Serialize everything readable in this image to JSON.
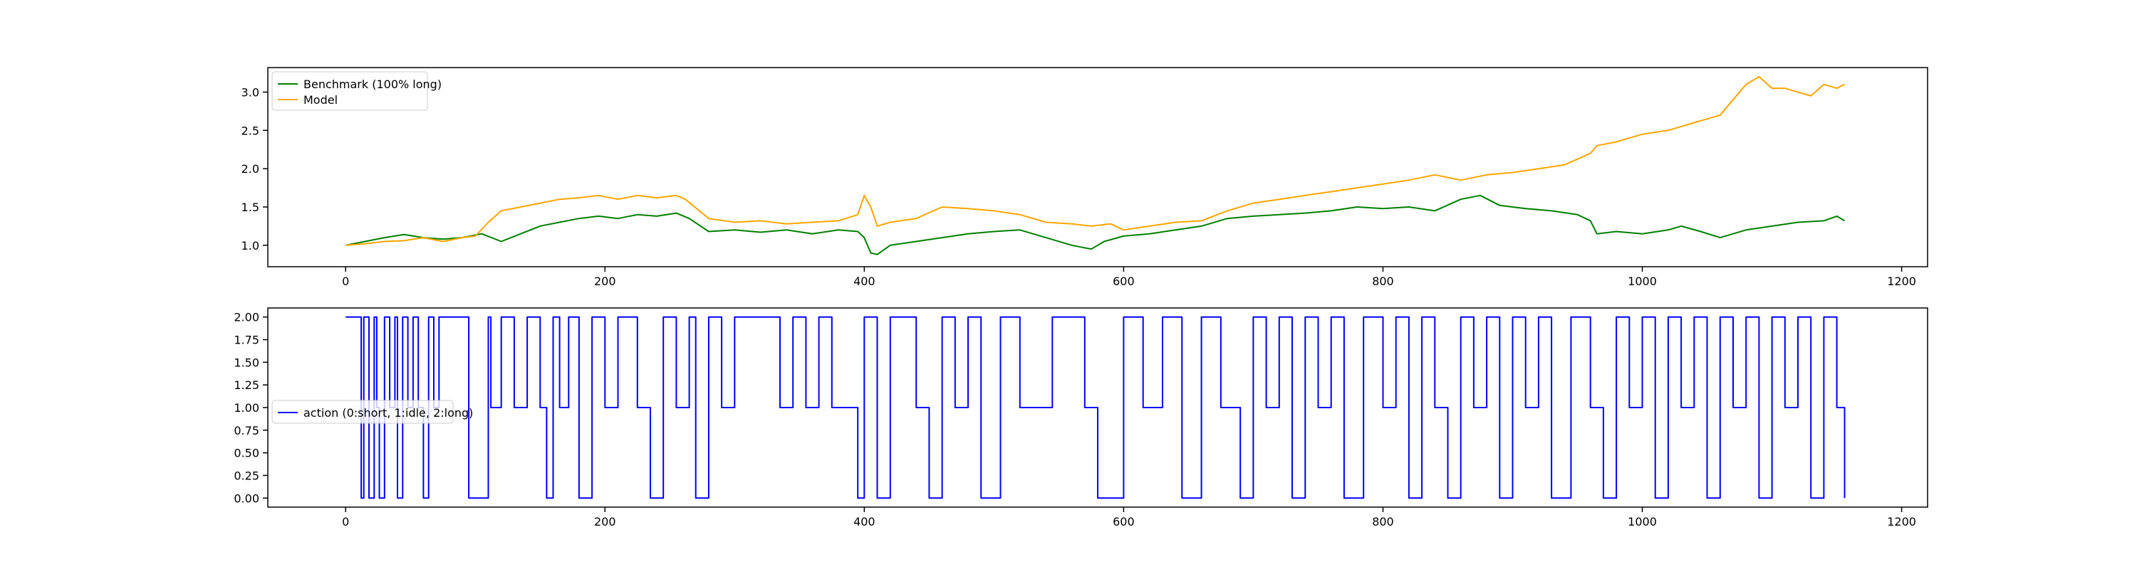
{
  "chart_data": [
    {
      "type": "line",
      "title": "",
      "xlabel": "",
      "ylabel": "",
      "xlim": [
        -60,
        1220
      ],
      "ylim": [
        0.72,
        3.32
      ],
      "xticks": [
        0,
        200,
        400,
        600,
        800,
        1000,
        1200
      ],
      "yticks": [
        1.0,
        1.5,
        2.0,
        2.5,
        3.0
      ],
      "ytick_labels": [
        "1.0",
        "1.5",
        "2.0",
        "2.5",
        "3.0"
      ],
      "grid": false,
      "legend": "upper-left",
      "series": [
        {
          "name": "Benchmark (100% long)",
          "color": "#008000",
          "x": [
            0,
            15,
            30,
            45,
            60,
            75,
            90,
            105,
            120,
            135,
            150,
            165,
            180,
            195,
            210,
            225,
            240,
            255,
            265,
            280,
            300,
            320,
            340,
            360,
            380,
            395,
            400,
            405,
            410,
            420,
            440,
            460,
            480,
            500,
            520,
            540,
            560,
            575,
            585,
            600,
            620,
            640,
            660,
            680,
            700,
            720,
            740,
            760,
            780,
            800,
            820,
            840,
            860,
            875,
            890,
            910,
            930,
            950,
            960,
            965,
            980,
            1000,
            1020,
            1030,
            1045,
            1060,
            1080,
            1100,
            1120,
            1140,
            1150,
            1156
          ],
          "y": [
            1.0,
            1.05,
            1.1,
            1.14,
            1.1,
            1.08,
            1.1,
            1.15,
            1.05,
            1.15,
            1.25,
            1.3,
            1.35,
            1.38,
            1.35,
            1.4,
            1.38,
            1.42,
            1.35,
            1.18,
            1.2,
            1.17,
            1.2,
            1.15,
            1.2,
            1.18,
            1.1,
            0.9,
            0.88,
            1.0,
            1.05,
            1.1,
            1.15,
            1.18,
            1.2,
            1.1,
            1.0,
            0.95,
            1.05,
            1.12,
            1.15,
            1.2,
            1.25,
            1.35,
            1.38,
            1.4,
            1.42,
            1.45,
            1.5,
            1.48,
            1.5,
            1.45,
            1.6,
            1.65,
            1.52,
            1.48,
            1.45,
            1.4,
            1.32,
            1.15,
            1.18,
            1.15,
            1.2,
            1.25,
            1.18,
            1.1,
            1.2,
            1.25,
            1.3,
            1.32,
            1.38,
            1.32
          ]
        },
        {
          "name": "Model",
          "color": "#ffa500",
          "x": [
            0,
            15,
            30,
            45,
            60,
            75,
            90,
            100,
            110,
            120,
            135,
            150,
            165,
            180,
            195,
            210,
            225,
            240,
            255,
            262,
            280,
            300,
            320,
            340,
            360,
            380,
            395,
            400,
            405,
            410,
            420,
            440,
            460,
            480,
            500,
            520,
            540,
            560,
            575,
            590,
            600,
            620,
            640,
            660,
            680,
            700,
            720,
            740,
            760,
            780,
            800,
            820,
            840,
            860,
            880,
            900,
            920,
            940,
            960,
            965,
            980,
            1000,
            1020,
            1040,
            1050,
            1060,
            1070,
            1080,
            1090,
            1100,
            1110,
            1120,
            1130,
            1140,
            1150,
            1156
          ],
          "y": [
            1.0,
            1.02,
            1.05,
            1.06,
            1.1,
            1.05,
            1.1,
            1.12,
            1.3,
            1.45,
            1.5,
            1.55,
            1.6,
            1.62,
            1.65,
            1.6,
            1.65,
            1.62,
            1.65,
            1.6,
            1.35,
            1.3,
            1.32,
            1.28,
            1.3,
            1.32,
            1.4,
            1.65,
            1.5,
            1.25,
            1.3,
            1.35,
            1.5,
            1.48,
            1.45,
            1.4,
            1.3,
            1.28,
            1.25,
            1.28,
            1.2,
            1.25,
            1.3,
            1.32,
            1.45,
            1.55,
            1.6,
            1.65,
            1.7,
            1.75,
            1.8,
            1.85,
            1.92,
            1.85,
            1.92,
            1.95,
            2.0,
            2.05,
            2.2,
            2.3,
            2.35,
            2.45,
            2.5,
            2.6,
            2.65,
            2.7,
            2.9,
            3.1,
            3.2,
            3.05,
            3.05,
            3.0,
            2.95,
            3.1,
            3.05,
            3.1
          ]
        }
      ]
    },
    {
      "type": "line",
      "title": "",
      "xlabel": "",
      "ylabel": "",
      "xlim": [
        -60,
        1220
      ],
      "ylim": [
        -0.1,
        2.1
      ],
      "xticks": [
        0,
        200,
        400,
        600,
        800,
        1000,
        1200
      ],
      "yticks": [
        0.0,
        0.25,
        0.5,
        0.75,
        1.0,
        1.25,
        1.5,
        1.75,
        2.0
      ],
      "ytick_labels": [
        "0.00",
        "0.25",
        "0.50",
        "0.75",
        "1.00",
        "1.25",
        "1.50",
        "1.75",
        "2.00"
      ],
      "grid": false,
      "legend": "center-left",
      "series": [
        {
          "name": "action (0:short, 1:idle, 2:long)",
          "color": "#0000ff",
          "x": [
            0,
            12,
            14,
            18,
            22,
            24,
            26,
            30,
            34,
            38,
            40,
            44,
            48,
            52,
            56,
            60,
            64,
            68,
            72,
            95,
            110,
            112,
            120,
            130,
            140,
            150,
            155,
            160,
            165,
            172,
            180,
            190,
            200,
            210,
            225,
            235,
            245,
            255,
            265,
            270,
            280,
            290,
            300,
            310,
            335,
            345,
            355,
            365,
            375,
            395,
            400,
            410,
            420,
            440,
            450,
            460,
            470,
            480,
            490,
            505,
            520,
            545,
            570,
            580,
            600,
            615,
            630,
            645,
            660,
            675,
            690,
            700,
            710,
            720,
            730,
            740,
            750,
            760,
            770,
            785,
            800,
            810,
            820,
            830,
            840,
            850,
            860,
            870,
            880,
            890,
            900,
            910,
            920,
            930,
            945,
            960,
            970,
            980,
            990,
            1000,
            1010,
            1020,
            1030,
            1040,
            1050,
            1060,
            1070,
            1080,
            1090,
            1100,
            1110,
            1120,
            1130,
            1140,
            1150,
            1156
          ],
          "y": [
            2,
            0,
            2,
            0,
            2,
            1,
            0,
            2,
            1,
            2,
            0,
            2,
            1,
            2,
            1,
            0,
            2,
            1,
            2,
            0,
            2,
            1,
            2,
            1,
            2,
            1,
            0,
            2,
            1,
            2,
            0,
            2,
            1,
            2,
            1,
            0,
            2,
            1,
            2,
            0,
            2,
            1,
            2,
            2,
            1,
            2,
            1,
            2,
            1,
            0,
            2,
            0,
            2,
            1,
            0,
            2,
            1,
            2,
            0,
            2,
            1,
            2,
            1,
            0,
            2,
            1,
            2,
            0,
            2,
            1,
            0,
            2,
            1,
            2,
            0,
            2,
            1,
            2,
            0,
            2,
            1,
            2,
            0,
            2,
            1,
            0,
            2,
            1,
            2,
            0,
            2,
            1,
            2,
            0,
            2,
            1,
            0,
            2,
            1,
            2,
            0,
            2,
            1,
            2,
            0,
            2,
            1,
            2,
            0,
            2,
            1,
            2,
            0,
            2,
            1,
            0
          ]
        }
      ]
    }
  ]
}
